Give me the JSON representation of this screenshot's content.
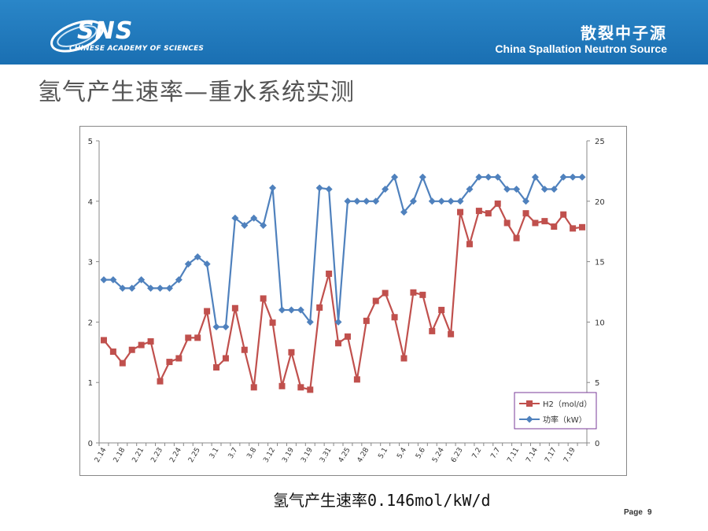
{
  "header": {
    "logo_text": "SNS",
    "logo_sub": "CHINESE ACADEMY OF SCIENCES",
    "org_cn": "散裂中子源",
    "org_en": "China Spallation Neutron Source"
  },
  "slide": {
    "title": "氢气产生速率—重水系统实测",
    "caption": "氢气产生速率0.146mol/kW/d",
    "page_label": "Page",
    "page_number": "9"
  },
  "colors": {
    "header": "#1f77bb",
    "h2": "#c0504d",
    "power": "#4f81bd"
  },
  "chart_data": {
    "type": "line",
    "title": "",
    "categories": [
      "2.14",
      "",
      "2.18",
      "",
      "2.21",
      "",
      "2.23",
      "",
      "2.24",
      "",
      "2.25",
      "",
      "3.1",
      "",
      "3.7",
      "",
      "3.8",
      "",
      "3.12",
      "",
      "3.19",
      "",
      "3.19",
      "",
      "3.31",
      "",
      "4.25",
      "",
      "4.28",
      "",
      "5.1",
      "",
      "5.4",
      "",
      "5.6",
      "",
      "5.24",
      "",
      "6.23",
      "",
      "7.2",
      "",
      "7.7",
      "",
      "7.11",
      "",
      "7.14",
      "",
      "7.17",
      "",
      "7.19",
      ""
    ],
    "y_left": {
      "min": 0,
      "max": 5,
      "ticks": [
        "0",
        "1",
        "2",
        "3",
        "4",
        "5"
      ]
    },
    "y_right": {
      "min": 0,
      "max": 25,
      "ticks": [
        "0",
        "5",
        "10",
        "15",
        "20",
        "25"
      ]
    },
    "series": [
      {
        "name": "H2（mol/d）",
        "axis": "left",
        "color": "#c0504d",
        "marker": "square",
        "values": [
          1.7,
          1.51,
          1.32,
          1.54,
          1.62,
          1.68,
          1.02,
          1.34,
          1.4,
          1.74,
          1.74,
          2.18,
          1.25,
          1.4,
          2.23,
          1.54,
          0.92,
          2.39,
          1.99,
          0.94,
          1.5,
          0.92,
          0.88,
          2.24,
          2.8,
          1.65,
          1.76,
          1.05,
          2.02,
          2.35,
          2.48,
          2.08,
          1.4,
          2.49,
          2.45,
          1.85,
          2.2,
          1.8,
          3.82,
          3.29,
          3.84,
          3.8,
          3.96,
          3.64,
          3.39,
          3.8,
          3.64,
          3.67,
          3.58,
          3.78,
          3.55,
          3.57
        ]
      },
      {
        "name": "功率（kW）",
        "axis": "right",
        "color": "#4f81bd",
        "marker": "diamond",
        "values": [
          13.5,
          13.5,
          12.8,
          12.8,
          13.5,
          12.8,
          12.8,
          12.8,
          13.5,
          14.8,
          15.4,
          14.8,
          9.6,
          9.6,
          18.6,
          18.0,
          18.6,
          18.0,
          21.1,
          11.0,
          11.0,
          11.0,
          10.0,
          21.1,
          21.0,
          10.0,
          20.0,
          20.0,
          20.0,
          20.0,
          21.0,
          22.0,
          19.1,
          20.0,
          22.0,
          20.0,
          20.0,
          20.0,
          20.0,
          21.0,
          22.0,
          22.0,
          22.0,
          21.0,
          21.0,
          20.0,
          22.0,
          21.0,
          21.0,
          22.0,
          22.0,
          22.0
        ]
      }
    ],
    "legend": "bottom-right inside plot"
  }
}
